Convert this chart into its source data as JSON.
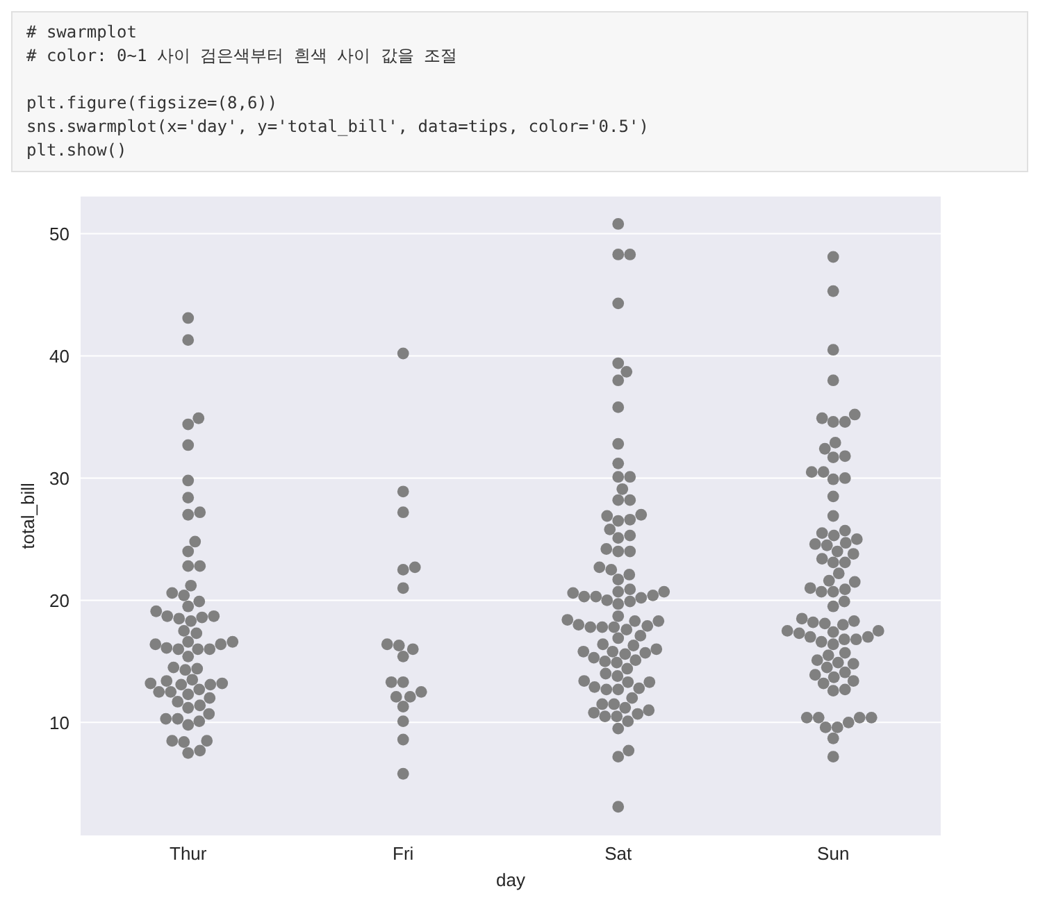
{
  "chart_data": {
    "type": "scatter",
    "xlabel": "day",
    "ylabel": "total_bill",
    "annotations": [
      "# swarmplot",
      "# color: 0~1 사이 검은색부터 흰색 사이 값을 조절",
      "plt.figure(figsize=(8,6))",
      "sns.swarmplot(x='day', y='total_bill', data=tips, color='0.5')",
      "plt.show()"
    ],
    "categories": [
      "Thur",
      "Fri",
      "Sat",
      "Sun"
    ],
    "ylim": [
      0.7,
      53.1
    ],
    "yticks": [
      10,
      20,
      30,
      40,
      50
    ],
    "grid": "y",
    "marker": "circle",
    "legend": false,
    "series": [
      {
        "color": "#808080",
        "x": [
          "Thur",
          "Thur",
          "Thur",
          "Thur",
          "Thur",
          "Thur",
          "Thur",
          "Thur",
          "Thur",
          "Thur",
          "Thur",
          "Thur",
          "Thur",
          "Thur",
          "Thur",
          "Thur",
          "Thur",
          "Thur",
          "Thur",
          "Thur",
          "Thur",
          "Thur",
          "Thur",
          "Thur",
          "Thur",
          "Thur",
          "Thur",
          "Thur",
          "Thur",
          "Thur",
          "Thur",
          "Thur",
          "Thur",
          "Thur",
          "Thur",
          "Thur",
          "Thur",
          "Thur",
          "Thur",
          "Thur",
          "Thur",
          "Thur",
          "Thur",
          "Thur",
          "Thur",
          "Thur",
          "Thur",
          "Thur",
          "Thur",
          "Thur",
          "Thur",
          "Thur",
          "Thur",
          "Thur",
          "Thur",
          "Thur",
          "Thur",
          "Thur",
          "Thur",
          "Thur",
          "Thur",
          "Thur"
        ],
        "values": [
          43.1,
          41.3,
          34.9,
          34.4,
          32.7,
          29.8,
          28.4,
          27.2,
          27.0,
          24.8,
          24.0,
          22.8,
          22.8,
          21.2,
          20.4,
          20.6,
          19.9,
          19.5,
          19.1,
          18.7,
          18.5,
          18.6,
          18.7,
          18.3,
          17.5,
          17.3,
          16.6,
          16.4,
          16.1,
          16.0,
          16.4,
          16.0,
          16.0,
          16.6,
          15.4,
          14.5,
          14.3,
          14.4,
          13.4,
          13.1,
          13.5,
          13.2,
          13.2,
          13.1,
          12.7,
          12.3,
          12.5,
          12.5,
          12.0,
          11.4,
          11.2,
          11.7,
          10.7,
          10.1,
          10.3,
          10.3,
          9.8,
          8.5,
          8.4,
          8.5,
          7.7,
          7.5
        ]
      },
      {
        "color": "#808080",
        "x": [
          "Fri",
          "Fri",
          "Fri",
          "Fri",
          "Fri",
          "Fri",
          "Fri",
          "Fri",
          "Fri",
          "Fri",
          "Fri",
          "Fri",
          "Fri",
          "Fri",
          "Fri",
          "Fri",
          "Fri",
          "Fri",
          "Fri"
        ],
        "values": [
          40.2,
          28.9,
          27.2,
          22.7,
          22.5,
          21.0,
          16.4,
          16.3,
          16.0,
          15.4,
          13.3,
          13.3,
          12.5,
          12.1,
          12.1,
          11.3,
          10.1,
          8.6,
          5.8
        ]
      },
      {
        "color": "#808080",
        "x": [
          "Sat",
          "Sat",
          "Sat",
          "Sat",
          "Sat",
          "Sat",
          "Sat",
          "Sat",
          "Sat",
          "Sat",
          "Sat",
          "Sat",
          "Sat",
          "Sat",
          "Sat",
          "Sat",
          "Sat",
          "Sat",
          "Sat",
          "Sat",
          "Sat",
          "Sat",
          "Sat",
          "Sat",
          "Sat",
          "Sat",
          "Sat",
          "Sat",
          "Sat",
          "Sat",
          "Sat",
          "Sat",
          "Sat",
          "Sat",
          "Sat",
          "Sat",
          "Sat",
          "Sat",
          "Sat",
          "Sat",
          "Sat",
          "Sat",
          "Sat",
          "Sat",
          "Sat",
          "Sat",
          "Sat",
          "Sat",
          "Sat",
          "Sat",
          "Sat",
          "Sat",
          "Sat",
          "Sat",
          "Sat",
          "Sat",
          "Sat",
          "Sat",
          "Sat",
          "Sat",
          "Sat",
          "Sat",
          "Sat",
          "Sat",
          "Sat",
          "Sat",
          "Sat",
          "Sat",
          "Sat",
          "Sat",
          "Sat",
          "Sat",
          "Sat",
          "Sat",
          "Sat",
          "Sat",
          "Sat",
          "Sat",
          "Sat",
          "Sat",
          "Sat",
          "Sat",
          "Sat",
          "Sat",
          "Sat",
          "Sat",
          "Sat"
        ],
        "values": [
          50.8,
          48.3,
          48.3,
          44.3,
          39.4,
          38.7,
          38.0,
          35.8,
          32.8,
          31.2,
          30.1,
          30.1,
          29.1,
          28.2,
          28.2,
          26.9,
          27.0,
          26.5,
          26.6,
          25.8,
          25.3,
          25.1,
          24.0,
          24.0,
          24.2,
          22.7,
          22.5,
          22.1,
          21.7,
          20.7,
          20.3,
          20.3,
          19.9,
          20.4,
          20.9,
          19.7,
          20.0,
          20.2,
          20.6,
          20.7,
          18.7,
          18.4,
          18.3,
          17.9,
          17.8,
          17.8,
          17.6,
          17.8,
          18.0,
          18.3,
          17.1,
          16.9,
          16.4,
          16.3,
          15.8,
          15.7,
          15.6,
          15.8,
          16.0,
          15.1,
          14.9,
          15.0,
          15.3,
          14.4,
          14.0,
          13.8,
          13.4,
          12.9,
          12.7,
          12.7,
          12.8,
          13.3,
          13.3,
          11.5,
          11.2,
          11.5,
          12.0,
          11.0,
          10.7,
          10.1,
          10.5,
          10.5,
          10.8,
          9.5,
          7.7,
          7.2,
          3.1
        ]
      },
      {
        "color": "#808080",
        "x": [
          "Sun",
          "Sun",
          "Sun",
          "Sun",
          "Sun",
          "Sun",
          "Sun",
          "Sun",
          "Sun",
          "Sun",
          "Sun",
          "Sun",
          "Sun",
          "Sun",
          "Sun",
          "Sun",
          "Sun",
          "Sun",
          "Sun",
          "Sun",
          "Sun",
          "Sun",
          "Sun",
          "Sun",
          "Sun",
          "Sun",
          "Sun",
          "Sun",
          "Sun",
          "Sun",
          "Sun",
          "Sun",
          "Sun",
          "Sun",
          "Sun",
          "Sun",
          "Sun",
          "Sun",
          "Sun",
          "Sun",
          "Sun",
          "Sun",
          "Sun",
          "Sun",
          "Sun",
          "Sun",
          "Sun",
          "Sun",
          "Sun",
          "Sun",
          "Sun",
          "Sun",
          "Sun",
          "Sun",
          "Sun",
          "Sun",
          "Sun",
          "Sun",
          "Sun",
          "Sun",
          "Sun",
          "Sun",
          "Sun",
          "Sun",
          "Sun",
          "Sun",
          "Sun",
          "Sun",
          "Sun",
          "Sun",
          "Sun",
          "Sun",
          "Sun",
          "Sun",
          "Sun",
          "Sun"
        ],
        "values": [
          48.1,
          45.3,
          40.5,
          38.0,
          35.2,
          34.6,
          34.6,
          34.9,
          32.9,
          32.4,
          31.8,
          31.7,
          30.5,
          30.5,
          30.0,
          29.9,
          28.5,
          26.9,
          25.7,
          25.3,
          25.5,
          25.0,
          24.5,
          24.6,
          24.7,
          23.8,
          24.0,
          23.1,
          23.1,
          23.4,
          22.2,
          21.6,
          21.5,
          21.0,
          20.7,
          20.7,
          20.9,
          19.9,
          19.5,
          18.5,
          18.2,
          18.0,
          18.1,
          18.3,
          17.4,
          17.5,
          17.0,
          17.3,
          17.5,
          16.8,
          16.4,
          16.8,
          16.6,
          17.0,
          15.5,
          15.7,
          15.1,
          14.9,
          14.5,
          14.8,
          13.9,
          13.4,
          13.7,
          14.1,
          13.2,
          12.7,
          12.6,
          10.4,
          10.4,
          10.4,
          10.4,
          9.6,
          9.6,
          10.0,
          8.7,
          7.2
        ]
      }
    ]
  }
}
